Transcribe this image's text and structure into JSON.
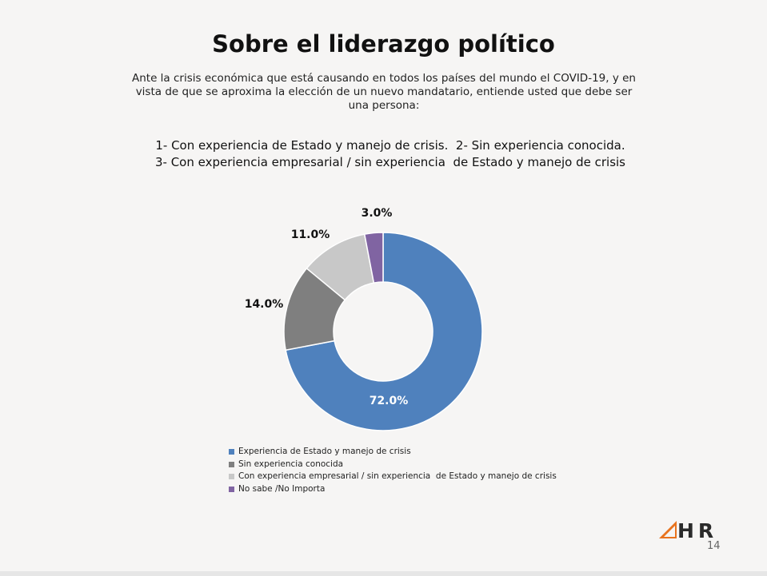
{
  "slide": {
    "title": "Sobre el liderazgo político",
    "question_lines": [
      "Ante la crisis económica que está causando en todos los países del mundo el COVID-19, y en",
      "vista de que se aproxima la elección de un nuevo mandatario, entiende usted que debe ser",
      "una persona:"
    ],
    "options_lines": [
      "1- Con experiencia de Estado y manejo de crisis.  2- Sin experiencia conocida.",
      "3- Con experiencia empresarial / sin experiencia  de Estado y manejo de crisis"
    ],
    "page_number": "14",
    "logo_text": "HR"
  },
  "chart_data": {
    "type": "pie",
    "variant": "donut",
    "categories": [
      "Experiencia de Estado y manejo de crisis",
      "Sin experiencia conocida",
      "Con experiencia empresarial / sin experiencia  de Estado y manejo de crisis",
      "No sabe /No Importa"
    ],
    "values": [
      72.0,
      14.0,
      11.0,
      3.0
    ],
    "labels": [
      "72.0%",
      "14.0%",
      "11.0%",
      "3.0%"
    ],
    "colors": [
      "#4f81bd",
      "#7f7f7f",
      "#c8c8c8",
      "#8064a2"
    ],
    "legend_position": "bottom-left"
  }
}
